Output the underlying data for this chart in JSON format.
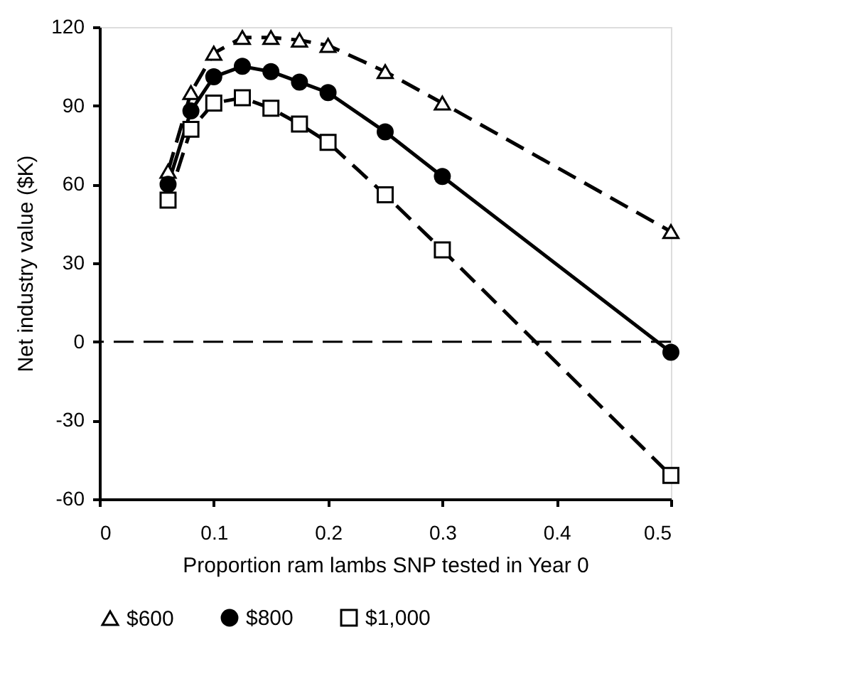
{
  "chart_data": {
    "type": "line",
    "xlabel": "Proportion ram lambs SNP tested in Year 0",
    "ylabel": "Net industry value ($K)",
    "x": [
      0.06,
      0.08,
      0.1,
      0.125,
      0.15,
      0.175,
      0.2,
      0.25,
      0.3,
      0.5
    ],
    "series": [
      {
        "name": "$600",
        "color": "#000000",
        "marker": "triangle",
        "line_style": "dashed",
        "values": [
          65,
          95,
          110,
          116,
          116,
          115,
          113,
          103,
          91,
          42
        ]
      },
      {
        "name": "$800",
        "color": "#000000",
        "marker": "circle",
        "line_style": "solid",
        "values": [
          60,
          88,
          101,
          105,
          103,
          99,
          95,
          80,
          63,
          -4
        ]
      },
      {
        "name": "$1,000",
        "color": "#000000",
        "marker": "square",
        "line_style": "dashed",
        "values": [
          54,
          81,
          91,
          93,
          89,
          83,
          76,
          56,
          35,
          -51
        ]
      }
    ],
    "xlim": [
      0,
      0.5
    ],
    "xticks": [
      0,
      0.1,
      0.2,
      0.3,
      0.4,
      0.5
    ],
    "ylim": [
      -60,
      120
    ],
    "yticks": [
      -60,
      -30,
      0,
      30,
      60,
      90,
      120
    ],
    "ref_lines": [
      {
        "axis": "y",
        "value": 0,
        "line_style": "dashed",
        "color": "#000000"
      }
    ],
    "grid": false,
    "legend": "bottom"
  }
}
